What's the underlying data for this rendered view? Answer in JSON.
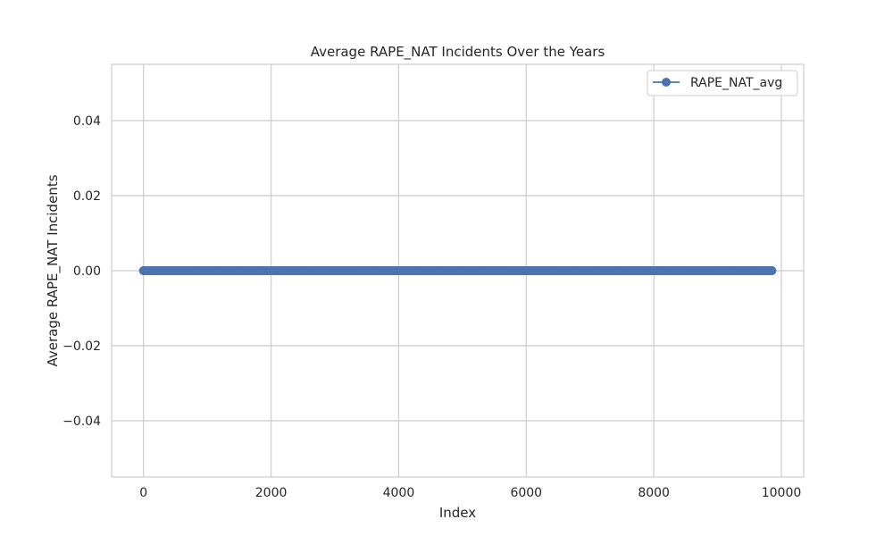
{
  "chart_data": {
    "type": "line",
    "title": "Average RAPE_NAT Incidents Over the Years",
    "xlabel": "Index",
    "ylabel": "Average RAPE_NAT Incidents",
    "xlim": [
      -500,
      10350
    ],
    "ylim": [
      -0.055,
      0.055
    ],
    "xticks": [
      0,
      2000,
      4000,
      6000,
      8000,
      10000
    ],
    "yticks": [
      -0.04,
      -0.02,
      0.0,
      0.02,
      0.04
    ],
    "xtick_labels": [
      "0",
      "2000",
      "4000",
      "6000",
      "8000",
      "10000"
    ],
    "ytick_labels": [
      "−0.04",
      "−0.02",
      "0.00",
      "0.02",
      "0.04"
    ],
    "grid": true,
    "legend_position": "top-right",
    "series": [
      {
        "name": "RAPE_NAT_avg",
        "color": "#4c72b0",
        "marker": "circle",
        "x_start": 0,
        "x_end": 9850,
        "x_step": 1,
        "y_constant": 0.0
      }
    ]
  }
}
